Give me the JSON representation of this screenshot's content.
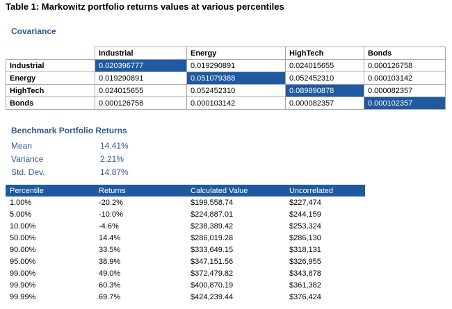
{
  "title": "Table 1: Markowitz portfolio returns values at various percentiles",
  "covariance": {
    "heading": "Covariance",
    "columns": [
      "Industrial",
      "Energy",
      "HighTech",
      "Bonds"
    ],
    "rows": [
      {
        "label": "Industrial",
        "values": [
          "0.020396777",
          "0.019290891",
          "0.024015655",
          "0.000126758"
        ]
      },
      {
        "label": "Energy",
        "values": [
          "0.019290891",
          "0.051079388",
          "0.052452310",
          "0.000103142"
        ]
      },
      {
        "label": "HighTech",
        "values": [
          "0.024015655",
          "0.052452310",
          "0.089890878",
          "0.000082357"
        ]
      },
      {
        "label": "Bonds",
        "values": [
          "0.000126758",
          "0.000103142",
          "0.000082357",
          "0.000102357"
        ]
      }
    ]
  },
  "benchmark": {
    "heading": "Benchmark Portfolio Returns",
    "items": [
      {
        "label": "Mean",
        "value": "14.41%"
      },
      {
        "label": "Variance",
        "value": "2.21%"
      },
      {
        "label": "Std. Dev.",
        "value": "14.87%"
      }
    ]
  },
  "returns": {
    "headers": [
      "Percentile",
      "Returns",
      "Calculated Value",
      "Uncorrelated"
    ],
    "rows": [
      [
        "1.00%",
        "-20.2%",
        "$199,558.74",
        "$227,474"
      ],
      [
        "5.00%",
        "-10.0%",
        "$224,887.01",
        "$244,159"
      ],
      [
        "10.00%",
        "-4.6%",
        "$238,389.42",
        "$253,324"
      ],
      [
        "50.00%",
        "14.4%",
        "$286,019.28",
        "$286,130"
      ],
      [
        "90.00%",
        "33.5%",
        "$333,649.15",
        "$318,131"
      ],
      [
        "95.00%",
        "38.9%",
        "$347,151.56",
        "$326,955"
      ],
      [
        "99.00%",
        "49.0%",
        "$372,479.82",
        "$343,878"
      ],
      [
        "99.90%",
        "60.3%",
        "$400,870.19",
        "$361,382"
      ],
      [
        "99.99%",
        "69.7%",
        "$424,239.44",
        "$376,424"
      ]
    ]
  },
  "colors": {
    "accent": "#1f5aa0",
    "heading": "#2f5b8f"
  }
}
